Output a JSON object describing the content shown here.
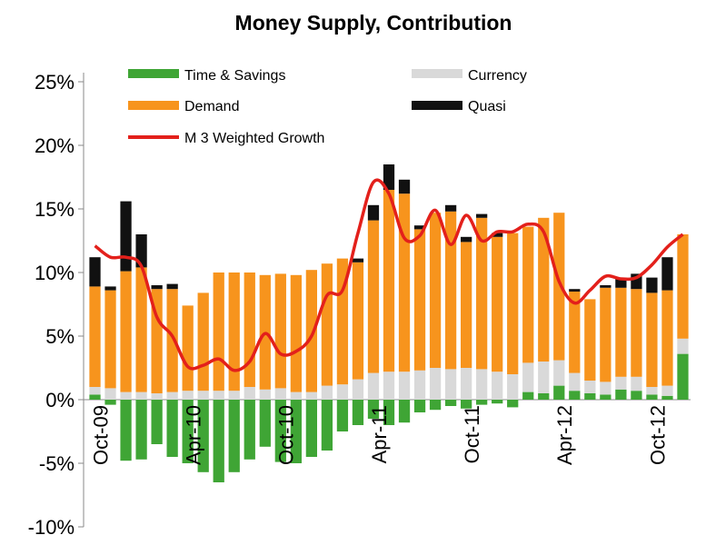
{
  "chart_data": {
    "type": "bar",
    "title": "Money Supply, Contribution",
    "stacked": true,
    "ylim": [
      -0.1,
      0.25
    ],
    "yticks": [
      "-10%",
      "-5%",
      "0%",
      "5%",
      "10%",
      "15%",
      "20%",
      "25%"
    ],
    "ytick_values": [
      -0.1,
      -0.05,
      0,
      0.05,
      0.1,
      0.15,
      0.2,
      0.25
    ],
    "xtick_labels": [
      {
        "label": "Oct-09",
        "index": 0
      },
      {
        "label": "Apr-10",
        "index": 6
      },
      {
        "label": "Oct-10",
        "index": 12
      },
      {
        "label": "Apr-11",
        "index": 18
      },
      {
        "label": "Oct-11",
        "index": 24
      },
      {
        "label": "Apr-12",
        "index": 30
      },
      {
        "label": "Oct-12",
        "index": 36
      }
    ],
    "colors": {
      "time_savings": "#3fa535",
      "currency": "#d9d9d9",
      "demand": "#f7941d",
      "quasi": "#111111",
      "growth_line": "#e3201b"
    },
    "legend_placement": "top",
    "series": [
      {
        "key": "time_savings",
        "name": "Time & Savings",
        "values": [
          0.004,
          -0.004,
          -0.048,
          -0.047,
          -0.035,
          -0.045,
          -0.05,
          -0.057,
          -0.065,
          -0.057,
          -0.047,
          -0.037,
          -0.049,
          -0.05,
          -0.045,
          -0.04,
          -0.025,
          -0.02,
          -0.015,
          -0.02,
          -0.018,
          -0.01,
          -0.008,
          -0.005,
          -0.007,
          -0.004,
          -0.003,
          -0.006,
          0.006,
          0.005,
          0.011,
          0.007,
          0.005,
          0.004,
          0.008,
          0.007,
          0.004,
          0.003,
          0.036
        ]
      },
      {
        "key": "currency",
        "name": "Currency",
        "values": [
          0.006,
          0.009,
          0.006,
          0.006,
          0.005,
          0.006,
          0.007,
          0.007,
          0.007,
          0.007,
          0.01,
          0.008,
          0.009,
          0.006,
          0.006,
          0.011,
          0.012,
          0.016,
          0.021,
          0.022,
          0.022,
          0.023,
          0.025,
          0.024,
          0.025,
          0.024,
          0.022,
          0.02,
          0.023,
          0.025,
          0.02,
          0.014,
          0.01,
          0.01,
          0.01,
          0.011,
          0.006,
          0.008,
          0.012
        ]
      },
      {
        "key": "demand",
        "name": "Demand",
        "values": [
          0.079,
          0.077,
          0.095,
          0.098,
          0.082,
          0.081,
          0.067,
          0.077,
          0.093,
          0.093,
          0.09,
          0.09,
          0.09,
          0.092,
          0.096,
          0.096,
          0.099,
          0.092,
          0.12,
          0.143,
          0.14,
          0.111,
          0.122,
          0.124,
          0.099,
          0.119,
          0.106,
          0.111,
          0.107,
          0.113,
          0.116,
          0.064,
          0.064,
          0.074,
          0.07,
          0.069,
          0.074,
          0.075,
          0.082
        ]
      },
      {
        "key": "quasi",
        "name": "Quasi",
        "values": [
          0.023,
          0.003,
          0.055,
          0.026,
          0.003,
          0.004,
          0.0,
          0.0,
          0.0,
          0.0,
          0.0,
          0.0,
          0.0,
          0.0,
          0.0,
          0.0,
          0.0,
          0.003,
          0.012,
          0.02,
          0.011,
          0.003,
          0.0,
          0.005,
          0.004,
          0.003,
          0.003,
          0.0,
          0.0,
          0.0,
          0.0,
          0.002,
          0.0,
          0.002,
          0.008,
          0.012,
          0.012,
          0.026,
          0.0
        ]
      },
      {
        "key": "growth_line",
        "name": "M 3 Weighted Growth",
        "type": "line",
        "values": [
          0.121,
          0.112,
          0.112,
          0.105,
          0.065,
          0.05,
          0.026,
          0.027,
          0.032,
          0.023,
          0.03,
          0.052,
          0.036,
          0.038,
          0.05,
          0.082,
          0.086,
          0.131,
          0.171,
          0.162,
          0.127,
          0.129,
          0.149,
          0.122,
          0.145,
          0.125,
          0.132,
          0.132,
          0.138,
          0.132,
          0.093,
          0.076,
          0.086,
          0.097,
          0.095,
          0.096,
          0.106,
          0.12,
          0.13
        ]
      }
    ]
  }
}
